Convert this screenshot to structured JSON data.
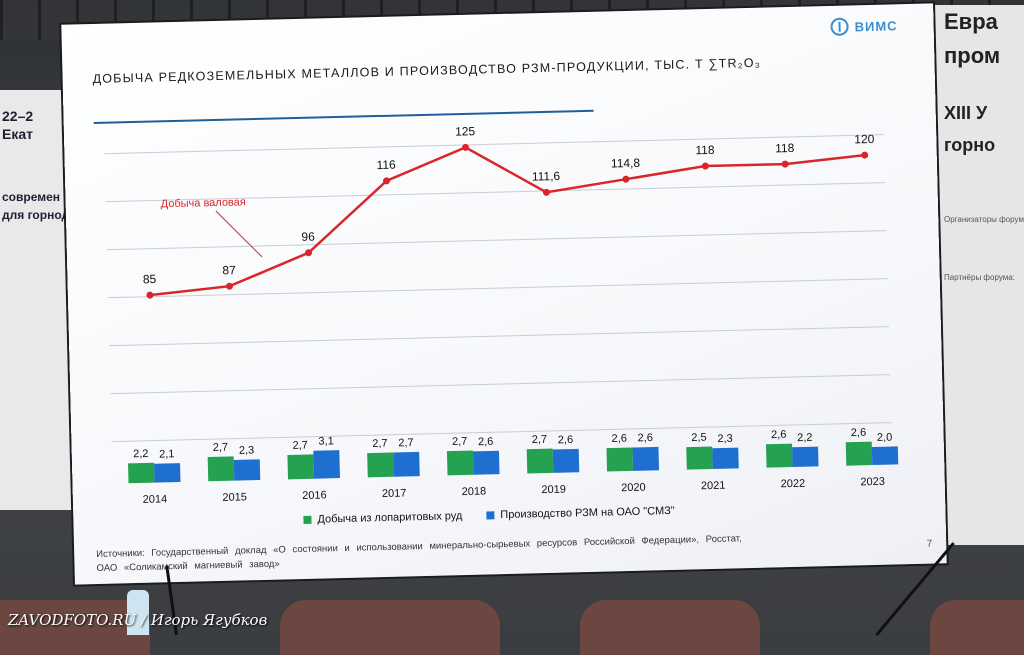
{
  "screen": {
    "logo_text": "ВИМС",
    "title": "ДОБЫЧА РЕДКОЗЕМЕЛЬНЫХ МЕТАЛЛОВ И ПРОИЗВОДСТВО РЗМ-ПРОДУКЦИИ, ТЫС. Т ∑TR₂O₃",
    "sources_line1": "Источники: Государственный доклад «О состоянии и использовании минерально-сырьевых ресурсов Российской Федерации», Росстат,",
    "sources_line2": "ОАО «Соликамский магниевый завод»",
    "page_number": "7"
  },
  "venue": {
    "left_lines": [
      "22–2",
      "Екат",
      "современ",
      "для горнод"
    ],
    "right_lines": [
      "Евра",
      "пром",
      "XIII У",
      "горно"
    ],
    "right_small": [
      "Организаторы форума:",
      "Партнёры форума:"
    ]
  },
  "watermark": "ZAVODFOTO.RU / Игорь Ягубков",
  "colors": {
    "line": "#d8262b",
    "green": "#25a152",
    "blue": "#1f6fd1"
  },
  "chart_data": {
    "type": "line",
    "title": "ДОБЫЧА РЕДКОЗЕМЕЛЬНЫХ МЕТАЛЛОВ И ПРОИЗВОДСТВО РЗМ-ПРОДУКЦИИ, ТЫС. Т ∑TR₂O₃",
    "categories": [
      "2014",
      "2015",
      "2016",
      "2017",
      "2018",
      "2019",
      "2020",
      "2021",
      "2022",
      "2023"
    ],
    "line_series": {
      "name": "Добыча валовая",
      "values": [
        85,
        87,
        96,
        116,
        125,
        111.6,
        114.8,
        118,
        118,
        120
      ],
      "labels": [
        "85",
        "87",
        "96",
        "116",
        "125",
        "111,6",
        "114,8",
        "118",
        "118",
        "120"
      ]
    },
    "bar_series": [
      {
        "name": "Добыча из лопаритовых руд",
        "values": [
          2.2,
          2.7,
          2.7,
          2.7,
          2.7,
          2.7,
          2.6,
          2.5,
          2.6,
          2.6
        ],
        "labels": [
          "2,2",
          "2,7",
          "2,7",
          "2,7",
          "2,7",
          "2,7",
          "2,6",
          "2,5",
          "2,6",
          "2,6"
        ]
      },
      {
        "name": "Производство РЗМ на ОАО \"СМЗ\"",
        "values": [
          2.1,
          2.3,
          3.1,
          2.7,
          2.6,
          2.6,
          2.6,
          2.3,
          2.2,
          2.0
        ],
        "labels": [
          "2,1",
          "2,3",
          "3,1",
          "2,7",
          "2,6",
          "2,6",
          "2,6",
          "2,3",
          "2,2",
          "2,0"
        ]
      }
    ],
    "legend_position": "bottom",
    "grid": true
  }
}
